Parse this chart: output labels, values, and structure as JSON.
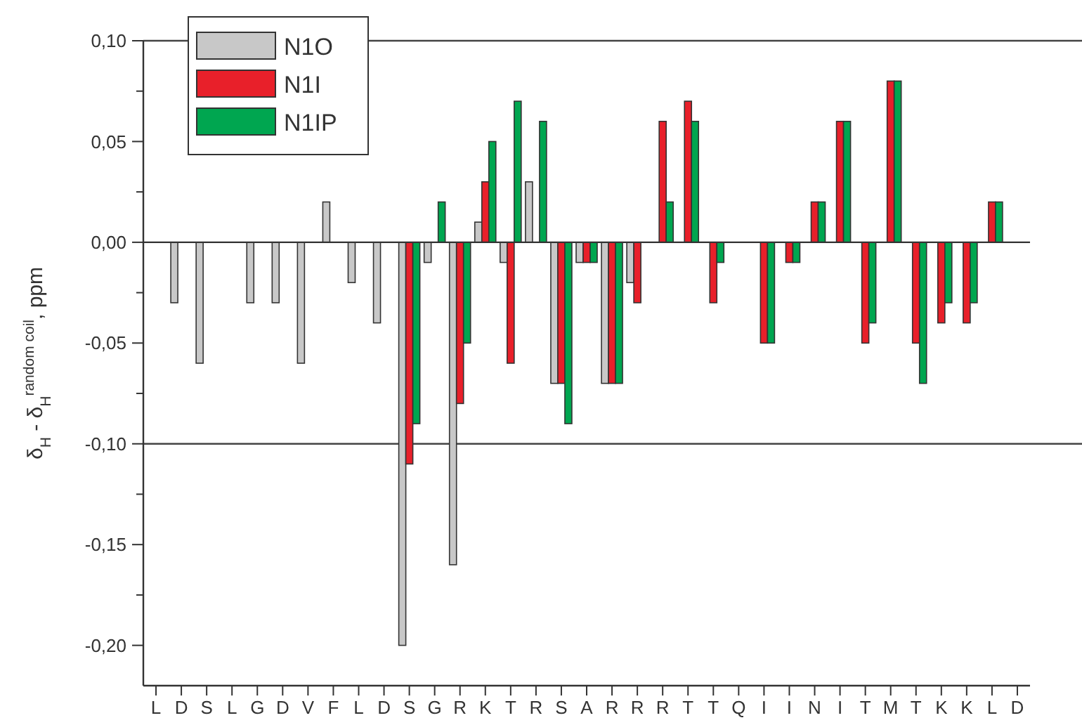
{
  "chart_data": {
    "type": "bar",
    "ylabel": "δ$_{H}$ - δ$_{H}$$^{random coil}$, ppm",
    "categories": [
      "L",
      "D",
      "S",
      "L",
      "G",
      "D",
      "V",
      "F",
      "L",
      "D",
      "S",
      "G",
      "R",
      "K",
      "T",
      "R",
      "S",
      "A",
      "R",
      "R",
      "R",
      "T",
      "T",
      "Q",
      "I",
      "I",
      "N",
      "I",
      "T",
      "M",
      "T",
      "K",
      "K",
      "L",
      "D"
    ],
    "series": [
      {
        "name": "N1O",
        "color": "#c8c8c8",
        "values": [
          null,
          -0.03,
          -0.06,
          null,
          -0.03,
          -0.03,
          -0.06,
          0.02,
          -0.02,
          -0.04,
          -0.2,
          -0.01,
          -0.16,
          0.01,
          -0.01,
          0.03,
          -0.07,
          -0.01,
          -0.07,
          -0.02,
          null,
          null,
          null,
          null,
          null,
          null,
          null,
          null,
          null,
          null,
          null,
          null,
          null,
          null,
          null
        ]
      },
      {
        "name": "N1I",
        "color": "#e8202a",
        "values": [
          null,
          null,
          null,
          null,
          null,
          null,
          null,
          null,
          null,
          null,
          -0.11,
          null,
          -0.08,
          0.03,
          -0.06,
          null,
          -0.07,
          -0.01,
          -0.07,
          -0.03,
          0.06,
          0.07,
          -0.03,
          null,
          -0.05,
          -0.01,
          0.02,
          0.06,
          -0.05,
          0.08,
          -0.05,
          -0.04,
          -0.04,
          0.02,
          null
        ]
      },
      {
        "name": "N1IP",
        "color": "#00a650",
        "values": [
          null,
          null,
          null,
          null,
          null,
          null,
          null,
          null,
          null,
          null,
          -0.09,
          0.02,
          -0.05,
          0.05,
          0.07,
          0.06,
          -0.09,
          -0.01,
          -0.07,
          null,
          0.02,
          0.06,
          -0.01,
          null,
          -0.05,
          -0.01,
          0.02,
          0.06,
          -0.04,
          0.08,
          -0.07,
          -0.03,
          -0.03,
          0.02,
          null
        ]
      }
    ],
    "ylim": [
      -0.22,
      0.1
    ],
    "yticks": [
      {
        "value": 0.1,
        "label": "0,10"
      },
      {
        "value": 0.075,
        "label": null
      },
      {
        "value": 0.05,
        "label": "0,05"
      },
      {
        "value": 0.025,
        "label": null
      },
      {
        "value": 0,
        "label": "0,00"
      },
      {
        "value": -0.025,
        "label": null
      },
      {
        "value": -0.05,
        "label": "-0,05"
      },
      {
        "value": -0.075,
        "label": null
      },
      {
        "value": -0.1,
        "label": "-0,10"
      },
      {
        "value": -0.125,
        "label": null
      },
      {
        "value": -0.15,
        "label": "-0,15"
      },
      {
        "value": -0.175,
        "label": null
      },
      {
        "value": -0.2,
        "label": "-0,20"
      }
    ],
    "ref_lines": [
      {
        "axis": "y",
        "value": 0.1,
        "color": "#444444"
      },
      {
        "axis": "y",
        "value": -0.1,
        "color": "#444444"
      }
    ],
    "legend": "top left",
    "grid": false
  }
}
